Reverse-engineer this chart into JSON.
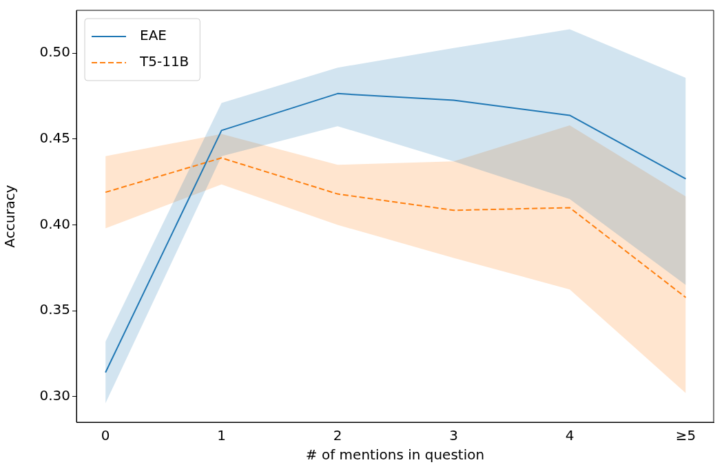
{
  "chart_data": {
    "type": "line",
    "xlabel": "# of mentions in question",
    "ylabel": "Accuracy",
    "categories": [
      "0",
      "1",
      "2",
      "3",
      "4",
      "≥5"
    ],
    "series": [
      {
        "name": "EAE",
        "color": "#1f77b4",
        "line_style": "solid",
        "values": [
          0.314,
          0.455,
          0.4765,
          0.4726,
          0.4638,
          0.4268
        ],
        "lower": [
          0.296,
          0.44,
          0.4575,
          0.437,
          0.415,
          0.365
        ],
        "upper": [
          0.332,
          0.471,
          0.4916,
          0.503,
          0.514,
          0.4857
        ]
      },
      {
        "name": "T5-11B",
        "color": "#ff7f0e",
        "line_style": "dashed",
        "values": [
          0.419,
          0.439,
          0.418,
          0.4085,
          0.41,
          0.3577
        ],
        "lower": [
          0.398,
          0.4236,
          0.4,
          0.3807,
          0.3624,
          0.302
        ],
        "upper": [
          0.44,
          0.453,
          0.435,
          0.437,
          0.458,
          0.4165
        ]
      }
    ],
    "ylim": [
      0.285,
      0.525
    ],
    "yticks": [
      {
        "value": 0.3,
        "label": "0.30"
      },
      {
        "value": 0.35,
        "label": "0.35"
      },
      {
        "value": 0.4,
        "label": "0.40"
      },
      {
        "value": 0.45,
        "label": "0.45"
      },
      {
        "value": 0.5,
        "label": "0.50"
      }
    ],
    "grid": false,
    "legend": "top left",
    "marker": "none"
  }
}
